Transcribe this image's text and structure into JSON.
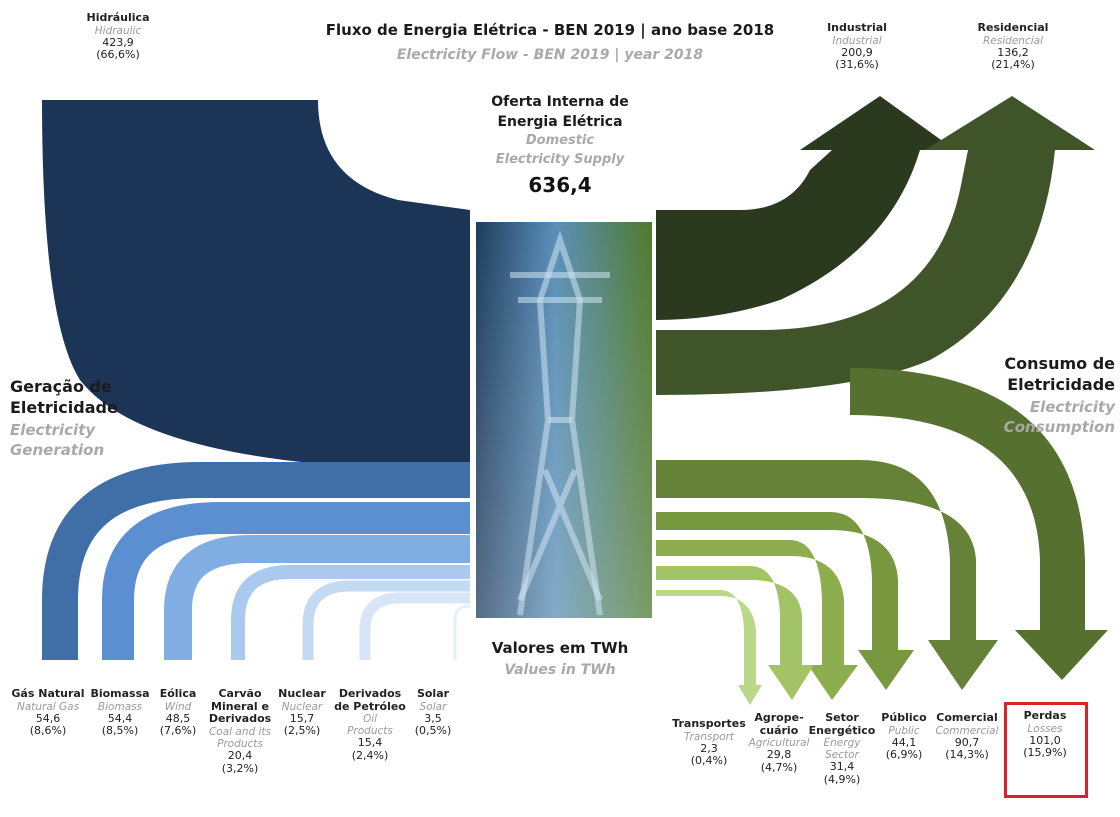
{
  "title": "Fluxo de Energia Elétrica - BEN 2019 | ano base 2018",
  "subtitle": "Electricity Flow - BEN 2019 | year 2018",
  "center": {
    "pt_line1": "Oferta Interna de",
    "pt_line2": "Energia Elétrica",
    "en_line1": "Domestic",
    "en_line2": "Electricity Supply",
    "total": "636,4"
  },
  "units": {
    "pt": "Valores em TWh",
    "en": "Values in TWh"
  },
  "generation_label": {
    "pt_line1": "Geração de",
    "pt_line2": "Eletricidade",
    "en_line1": "Electricity",
    "en_line2": "Generation"
  },
  "consumption_label": {
    "pt_line1": "Consumo de",
    "pt_line2": "Eletricidade",
    "en_line1": "Electricity",
    "en_line2": "Consumption"
  },
  "sources": [
    {
      "pt": "Hidráulica",
      "en": "Hidraulic",
      "value": "423,9",
      "pct": "(66,6%)",
      "color": "#1c3557"
    },
    {
      "pt": "Gás Natural",
      "en": "Natural Gas",
      "value": "54,6",
      "pct": "(8,6%)",
      "color": "#3f6fa6"
    },
    {
      "pt": "Biomassa",
      "en": "Biomass",
      "value": "54,4",
      "pct": "(8,5%)",
      "color": "#5b8fd1"
    },
    {
      "pt": "Eólica",
      "en": "Wind",
      "value": "48,5",
      "pct": "(7,6%)",
      "color": "#80aee3"
    },
    {
      "pt": "Carvão Mineral e Derivados",
      "pt_line1": "Carvão",
      "pt_line2": "Mineral e",
      "pt_line3": "Derivados",
      "en": "Coal and its Products",
      "en_line1": "Coal and its",
      "en_line2": "Products",
      "value": "20,4",
      "pct": "(3,2%)",
      "color": "#a9c9ee"
    },
    {
      "pt": "Nuclear",
      "en": "Nuclear",
      "value": "15,7",
      "pct": "(2,5%)",
      "color": "#c4d9f2"
    },
    {
      "pt": "Derivados de Petróleo",
      "pt_line1": "Derivados",
      "pt_line2": "de Petróleo",
      "en": "Oil Products",
      "en_line1": "Oil",
      "en_line2": "Products",
      "value": "15,4",
      "pct": "(2,4%)",
      "color": "#d7e5f6"
    },
    {
      "pt": "Solar",
      "en": "Solar",
      "value": "3,5",
      "pct": "(0,5%)",
      "color": "#e6eef9"
    }
  ],
  "consumers": [
    {
      "pt": "Industrial",
      "en": "Industrial",
      "value": "200,9",
      "pct": "(31,6%)",
      "color": "#2b3a1f"
    },
    {
      "pt": "Residencial",
      "en": "Residencial",
      "value": "136,2",
      "pct": "(21,4%)",
      "color": "#3f5529"
    },
    {
      "pt": "Perdas",
      "en": "Losses",
      "value": "101,0",
      "pct": "(15,9%)",
      "color": "#55702f"
    },
    {
      "pt": "Comercial",
      "en": "Commercial",
      "value": "90,7",
      "pct": "(14,3%)",
      "color": "#658238"
    },
    {
      "pt": "Público",
      "en": "Public",
      "value": "44,1",
      "pct": "(6,9%)",
      "color": "#77983f"
    },
    {
      "pt": "Setor Energético",
      "pt_line1": "Setor",
      "pt_line2": "Energético",
      "en": "Energy Sector",
      "en_line1": "Energy",
      "en_line2": "Sector",
      "value": "31,4",
      "pct": "(4,9%)",
      "color": "#8cae4f"
    },
    {
      "pt": "Agropecuário",
      "pt_line1": "Agrope-",
      "pt_line2": "cuário",
      "en": "Agricultural",
      "value": "29,8",
      "pct": "(4,7%)",
      "color": "#a3c466"
    },
    {
      "pt": "Transportes",
      "en": "Transport",
      "value": "2,3",
      "pct": "(0,4%)",
      "color": "#b9d88a"
    }
  ]
}
